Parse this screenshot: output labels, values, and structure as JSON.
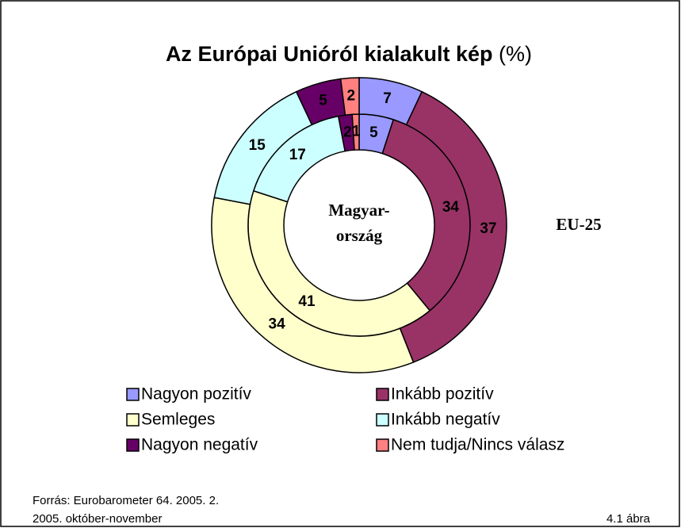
{
  "chart_data": {
    "type": "donut",
    "title": "Az Európai Unióról kialakult kép",
    "title_suffix": "(%)",
    "categories": [
      "Nagyon pozitív",
      "Inkább pozitív",
      "Semleges",
      "Inkább negatív",
      "Nagyon negatív",
      "Nem tudja/Nincs válasz"
    ],
    "colors": [
      "#9999ff",
      "#993366",
      "#ffffcc",
      "#ccffff",
      "#660066",
      "#ff8080"
    ],
    "series": [
      {
        "label_lines": [
          "Magyar-",
          "ország"
        ],
        "values": [
          5,
          34,
          41,
          17,
          2,
          1
        ]
      },
      {
        "name": "EU-25",
        "values": [
          7,
          37,
          34,
          15,
          5,
          2
        ]
      }
    ],
    "source_lines": [
      "Forrás: Eurobarometer 64. 2005. 2.",
      "2005. október-november"
    ],
    "figure_label": "4.1 ábra"
  }
}
